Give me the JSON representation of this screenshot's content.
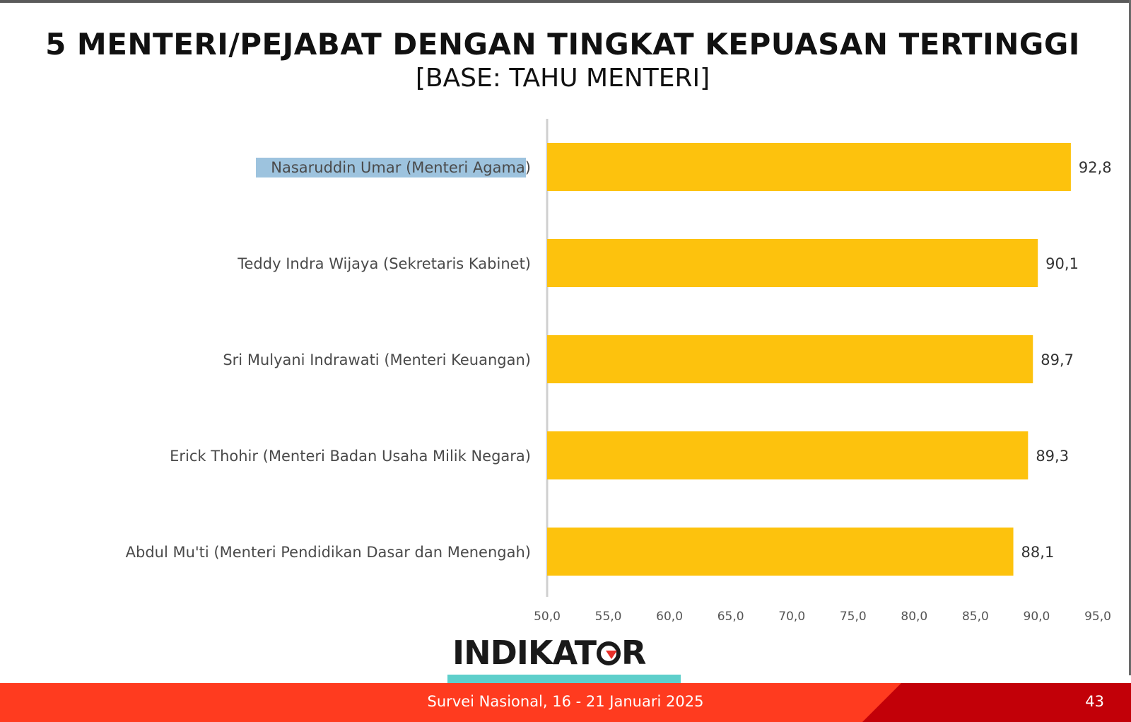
{
  "slide": {
    "footer_text": "Survei Nasional, 16 - 21 Januari 2025",
    "page_number": "43",
    "logo_left": "INDIK",
    "logo_mid": "AT",
    "logo_right": "R"
  },
  "colors": {
    "bar": "#FDC20D",
    "footer_red": "#FF3B1F",
    "footer_dark_red": "#C20008",
    "teal": "#5ECFCB",
    "selection_highlight": "#9DC3DE"
  },
  "chart_data": {
    "type": "bar",
    "orientation": "horizontal",
    "title": "5 MENTERI/PEJABAT DENGAN TINGKAT KEPUASAN TERTINGGI",
    "subtitle": "[BASE: TAHU MENTERI]",
    "categories": [
      "Nasaruddin Umar (Menteri Agama)",
      "Teddy Indra Wijaya (Sekretaris Kabinet)",
      "Sri Mulyani Indrawati (Menteri Keuangan)",
      "Erick Thohir (Menteri Badan Usaha Milik Negara)",
      "Abdul Mu'ti (Menteri Pendidikan Dasar dan Menengah)"
    ],
    "values": [
      92.8,
      90.1,
      89.7,
      89.3,
      88.1
    ],
    "value_labels": [
      "92,8",
      "90,1",
      "89,7",
      "89,3",
      "88,1"
    ],
    "xlim": [
      50,
      95
    ],
    "x_ticks": [
      50,
      55,
      60,
      65,
      70,
      75,
      80,
      85,
      90,
      95
    ],
    "x_tick_labels": [
      "50,0",
      "55,0",
      "60,0",
      "65,0",
      "70,0",
      "75,0",
      "80,0",
      "85,0",
      "90,0",
      "95,0"
    ],
    "grid": false,
    "legend": "none"
  }
}
